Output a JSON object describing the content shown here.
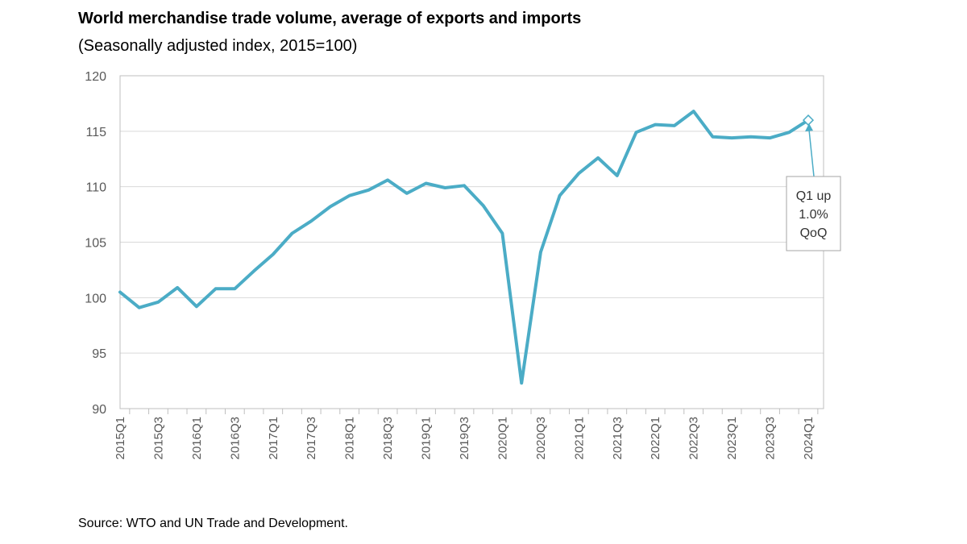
{
  "title": "World merchandise trade volume, average of exports and imports",
  "subtitle": "(Seasonally adjusted index, 2015=100)",
  "source": "Source: WTO and UN Trade and Development.",
  "colors": {
    "line": "#4bacc6",
    "grid": "#d9d9d9",
    "axis": "#bfbfbf"
  },
  "chart_data": {
    "type": "line",
    "title": "World merchandise trade volume, average of exports and imports",
    "subtitle": "(Seasonally adjusted index, 2015=100)",
    "xlabel": "",
    "ylabel": "",
    "ylim": [
      90,
      120
    ],
    "yticks": [
      90,
      95,
      100,
      105,
      110,
      115,
      120
    ],
    "grid": true,
    "categories": [
      "2015Q1",
      "2015Q2",
      "2015Q3",
      "2015Q4",
      "2016Q1",
      "2016Q2",
      "2016Q3",
      "2016Q4",
      "2017Q1",
      "2017Q2",
      "2017Q3",
      "2017Q4",
      "2018Q1",
      "2018Q2",
      "2018Q3",
      "2018Q4",
      "2019Q1",
      "2019Q2",
      "2019Q3",
      "2019Q4",
      "2020Q1",
      "2020Q2",
      "2020Q3",
      "2020Q4",
      "2021Q1",
      "2021Q2",
      "2021Q3",
      "2021Q4",
      "2022Q1",
      "2022Q2",
      "2022Q3",
      "2022Q4",
      "2023Q1",
      "2023Q2",
      "2023Q3",
      "2023Q4",
      "2024Q1"
    ],
    "tick_labels": [
      "2015Q1",
      "2015Q3",
      "2016Q1",
      "2016Q3",
      "2017Q1",
      "2017Q3",
      "2018Q1",
      "2018Q3",
      "2019Q1",
      "2019Q3",
      "2020Q1",
      "2020Q3",
      "2021Q1",
      "2021Q3",
      "2022Q1",
      "2022Q3",
      "2023Q1",
      "2023Q3",
      "2024Q1"
    ],
    "series": [
      {
        "values": [
          100.5,
          99.1,
          99.6,
          100.9,
          99.2,
          100.8,
          100.8,
          102.4,
          103.9,
          105.8,
          106.9,
          108.2,
          109.2,
          109.7,
          110.6,
          109.4,
          110.3,
          109.9,
          110.1,
          108.3,
          105.8,
          92.3,
          104.1,
          109.2,
          111.2,
          112.6,
          111.0,
          114.9,
          115.6,
          115.5,
          116.8,
          114.5,
          114.4,
          114.5,
          114.4,
          114.9,
          116.0
        ]
      }
    ],
    "annotation": {
      "category": "2024Q1",
      "lines": [
        "Q1 up",
        "1.0%",
        "QoQ"
      ]
    }
  }
}
